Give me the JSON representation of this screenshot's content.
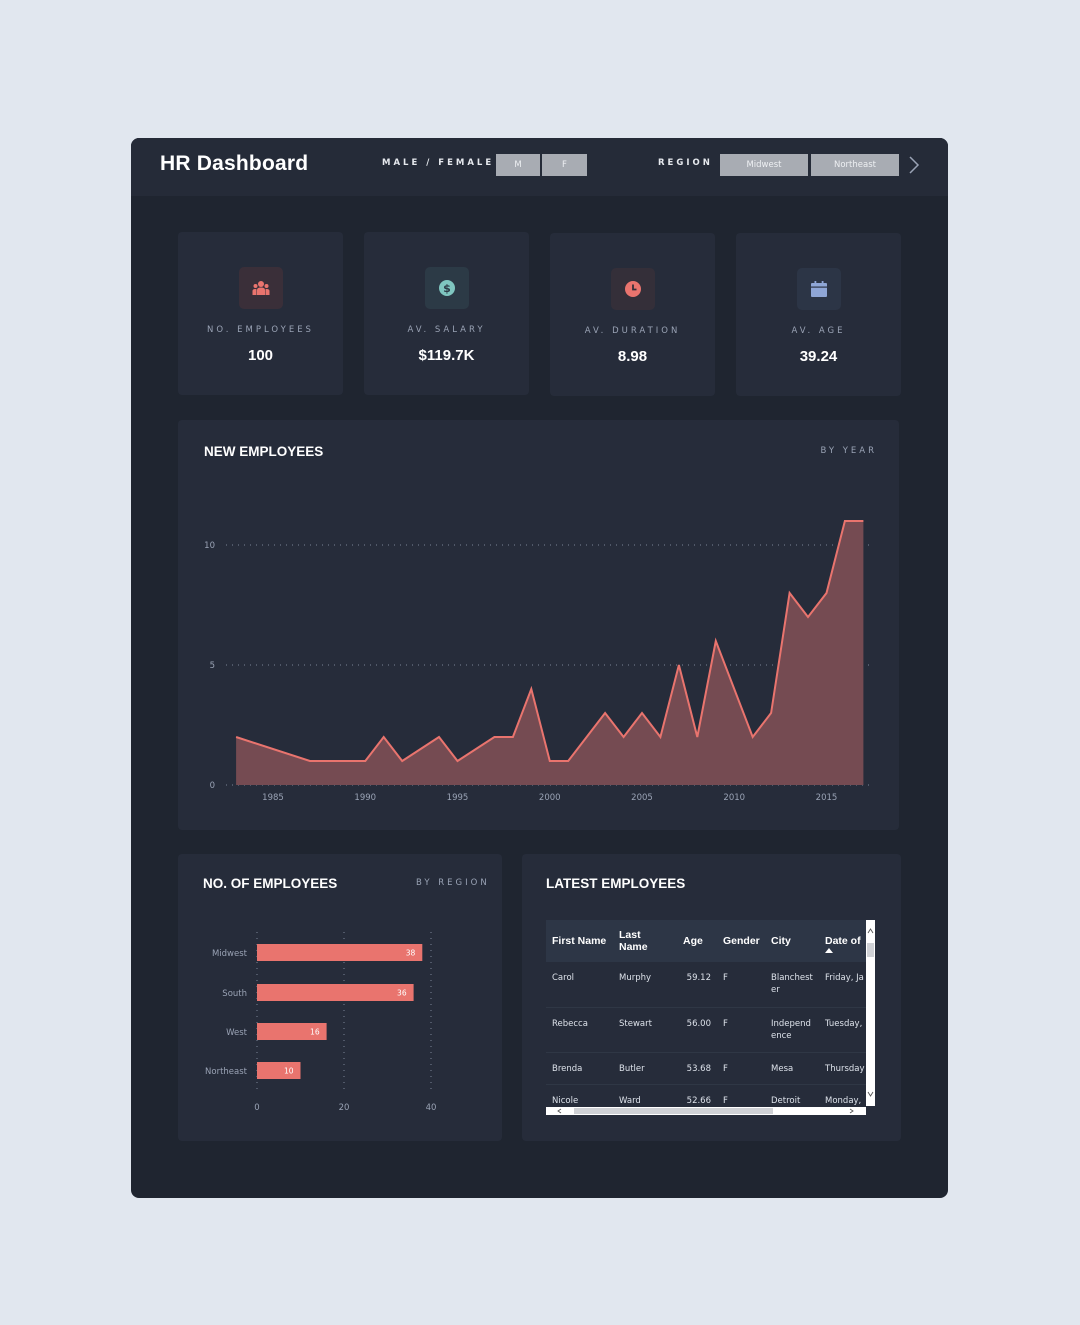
{
  "header": {
    "title": "HR Dashboard",
    "gender_filter": {
      "label": "MALE / FEMALE",
      "options": [
        "M",
        "F"
      ]
    },
    "region_filter": {
      "label": "REGION",
      "options": [
        "Midwest",
        "Northeast"
      ],
      "next_icon": "chevron-right-icon"
    }
  },
  "kpis": [
    {
      "label": "NO. EMPLOYEES",
      "value": "100",
      "icon": "people-icon",
      "icon_color": "#e9746e",
      "icon_bg": "#3a2f39"
    },
    {
      "label": "AV. SALARY",
      "value": "$119.7K",
      "icon": "dollar-icon",
      "icon_color": "#7fc6c0",
      "icon_bg": "#2c3a46"
    },
    {
      "label": "AV. DURATION",
      "value": "8.98",
      "icon": "clock-icon",
      "icon_color": "#e9746e",
      "icon_bg": "#342f39"
    },
    {
      "label": "AV. AGE",
      "value": "39.24",
      "icon": "calendar-icon",
      "icon_color": "#8fa6d6",
      "icon_bg": "#2c3546"
    }
  ],
  "new_employees": {
    "title": "NEW EMPLOYEES",
    "subtitle": "BY YEAR"
  },
  "region_panel": {
    "title": "NO. OF EMPLOYEES",
    "subtitle": "BY REGION"
  },
  "latest_employees": {
    "title": "LATEST EMPLOYEES",
    "columns": [
      "First Name",
      "Last Name",
      "Age",
      "Gender",
      "City",
      "Date of"
    ],
    "sorted_column": "Date of",
    "rows": [
      {
        "first": "Carol",
        "last": "Murphy",
        "age": "59.12",
        "gender": "F",
        "city": "Blanchest er",
        "date": "Friday, Ja"
      },
      {
        "first": "Rebecca",
        "last": "Stewart",
        "age": "56.00",
        "gender": "F",
        "city": "Independ ence",
        "date": "Tuesday,"
      },
      {
        "first": "Brenda",
        "last": "Butler",
        "age": "53.68",
        "gender": "F",
        "city": "Mesa",
        "date": "Thursday"
      },
      {
        "first": "Nicole",
        "last": "Ward",
        "age": "52.66",
        "gender": "F",
        "city": "Detroit",
        "date": "Monday,"
      }
    ]
  },
  "colors": {
    "accent": "#e9746e",
    "area_fill": "#754b52",
    "panel": "#262c3a",
    "frame": "#1f2530",
    "page": "#e1e7ef"
  },
  "chart_data": [
    {
      "type": "area",
      "title": "NEW EMPLOYEES",
      "subtitle": "BY YEAR",
      "xlabel": "",
      "ylabel": "",
      "x": [
        1983,
        1987,
        1988,
        1989,
        1990,
        1991,
        1992,
        1994,
        1995,
        1997,
        1998,
        1999,
        2000,
        2001,
        2003,
        2004,
        2005,
        2006,
        2007,
        2008,
        2009,
        2011,
        2012,
        2013,
        2014,
        2015,
        2016,
        2017
      ],
      "values": [
        2,
        1,
        1,
        1,
        1,
        2,
        1,
        2,
        1,
        2,
        2,
        4,
        1,
        1,
        3,
        2,
        3,
        2,
        5,
        2,
        6,
        2,
        3,
        8,
        7,
        8,
        11,
        11
      ],
      "x_ticks": [
        "1985",
        "1990",
        "1995",
        "2000",
        "2005",
        "2010",
        "2015"
      ],
      "y_ticks": [
        "0",
        "5",
        "10"
      ],
      "ylim": [
        0,
        11
      ],
      "grid": "dotted horizontal",
      "legend": "none"
    },
    {
      "type": "bar",
      "orientation": "horizontal",
      "title": "NO. OF EMPLOYEES",
      "subtitle": "BY REGION",
      "categories": [
        "Midwest",
        "South",
        "West",
        "Northeast"
      ],
      "values": [
        38,
        36,
        16,
        10
      ],
      "x_ticks": [
        "0",
        "20",
        "40"
      ],
      "xlim": [
        0,
        40
      ],
      "grid": "dotted vertical",
      "data_labels": true,
      "legend": "none"
    }
  ]
}
